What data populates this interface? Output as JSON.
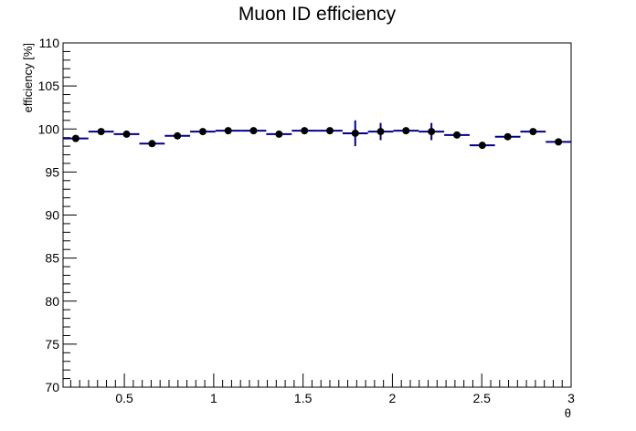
{
  "chart_data": {
    "type": "scatter",
    "title": "Muon ID efficiency",
    "xlabel": "θ",
    "ylabel": "efficiency [%]",
    "xlim": [
      0.157,
      3.0
    ],
    "ylim": [
      70,
      110
    ],
    "x_ticks": [
      "0.5",
      "1",
      "1.5",
      "2",
      "2.5",
      "3"
    ],
    "y_ticks": [
      "70",
      "75",
      "80",
      "85",
      "90",
      "95",
      "100",
      "105",
      "110"
    ],
    "grid": false,
    "series": [
      {
        "x_low": [
          0.157,
          0.299,
          0.441,
          0.584,
          0.726,
          0.868,
          1.01,
          1.152,
          1.294,
          1.437,
          1.579,
          1.721,
          1.863,
          2.005,
          2.147,
          2.29,
          2.432,
          2.574,
          2.716,
          2.858
        ],
        "x_high": [
          0.299,
          0.441,
          0.584,
          0.726,
          0.868,
          1.01,
          1.152,
          1.294,
          1.437,
          1.579,
          1.721,
          1.863,
          2.005,
          2.147,
          2.29,
          2.432,
          2.574,
          2.716,
          2.858,
          3.0
        ],
        "values": [
          98.9,
          99.7,
          99.4,
          98.3,
          99.2,
          99.7,
          99.8,
          99.8,
          99.4,
          99.8,
          99.8,
          99.5,
          99.7,
          99.8,
          99.7,
          99.3,
          98.1,
          99.1,
          99.7,
          98.5
        ],
        "errors": [
          0.3,
          0.3,
          0.3,
          0.3,
          0.3,
          0.3,
          0.2,
          0.2,
          0.3,
          0.2,
          0.3,
          1.5,
          1.0,
          0.2,
          1.0,
          0.3,
          0.3,
          0.3,
          0.3,
          0.3
        ]
      }
    ],
    "colors": {
      "marker": "#000000",
      "error_bar": "#00008b",
      "axis": "#000000"
    }
  }
}
